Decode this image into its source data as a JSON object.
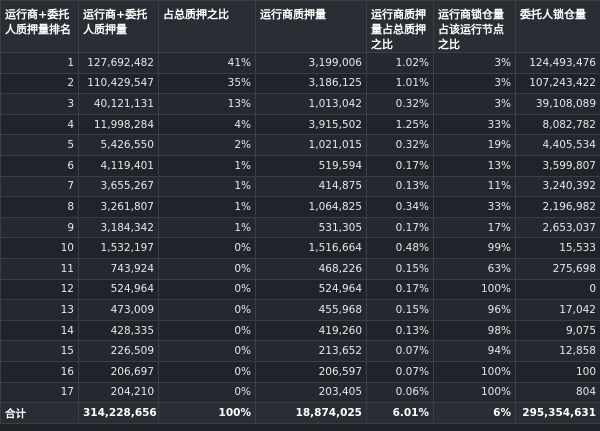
{
  "table": {
    "columns": [
      "运行商+委托人质押量排名",
      "运行商+委托人质押量",
      "占总质押之比",
      "运行商质押量",
      "运行商质押量占总质押之比",
      "运行商锁仓量占该运行节点之比",
      "委托人锁仓量"
    ],
    "rows": [
      [
        "1",
        "127,692,482",
        "41%",
        "3,199,006",
        "1.02%",
        "3%",
        "124,493,476"
      ],
      [
        "2",
        "110,429,547",
        "35%",
        "3,186,125",
        "1.01%",
        "3%",
        "107,243,422"
      ],
      [
        "3",
        "40,121,131",
        "13%",
        "1,013,042",
        "0.32%",
        "3%",
        "39,108,089"
      ],
      [
        "4",
        "11,998,284",
        "4%",
        "3,915,502",
        "1.25%",
        "33%",
        "8,082,782"
      ],
      [
        "5",
        "5,426,550",
        "2%",
        "1,021,015",
        "0.32%",
        "19%",
        "4,405,534"
      ],
      [
        "6",
        "4,119,401",
        "1%",
        "519,594",
        "0.17%",
        "13%",
        "3,599,807"
      ],
      [
        "7",
        "3,655,267",
        "1%",
        "414,875",
        "0.13%",
        "11%",
        "3,240,392"
      ],
      [
        "8",
        "3,261,807",
        "1%",
        "1,064,825",
        "0.34%",
        "33%",
        "2,196,982"
      ],
      [
        "9",
        "3,184,342",
        "1%",
        "531,305",
        "0.17%",
        "17%",
        "2,653,037"
      ],
      [
        "10",
        "1,532,197",
        "0%",
        "1,516,664",
        "0.48%",
        "99%",
        "15,533"
      ],
      [
        "11",
        "743,924",
        "0%",
        "468,226",
        "0.15%",
        "63%",
        "275,698"
      ],
      [
        "12",
        "524,964",
        "0%",
        "524,964",
        "0.17%",
        "100%",
        "0"
      ],
      [
        "13",
        "473,009",
        "0%",
        "455,968",
        "0.15%",
        "96%",
        "17,042"
      ],
      [
        "14",
        "428,335",
        "0%",
        "419,260",
        "0.13%",
        "98%",
        "9,075"
      ],
      [
        "15",
        "226,509",
        "0%",
        "213,652",
        "0.07%",
        "94%",
        "12,858"
      ],
      [
        "16",
        "206,697",
        "0%",
        "206,597",
        "0.07%",
        "100%",
        "100"
      ],
      [
        "17",
        "204,210",
        "0%",
        "203,405",
        "0.06%",
        "100%",
        "804"
      ]
    ],
    "total": [
      "合计",
      "314,228,656",
      "100%",
      "18,874,025",
      "6.01%",
      "6%",
      "295,354,631"
    ]
  }
}
